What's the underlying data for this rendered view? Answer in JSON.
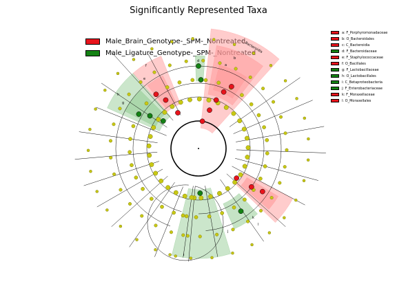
{
  "title": "Significantly Represented Taxa",
  "class_legend": [
    {
      "label": "Male_Brain_Genotype-_SPM-_Nontreated",
      "color": "#e8141c"
    },
    {
      "label": "Male_Ligature_Genotype-_SPM-_Nontreated",
      "color": "#148214"
    }
  ],
  "taxa_legend": [
    {
      "label": "a: F_Porphyromonadaceae",
      "color": "#e8141c"
    },
    {
      "label": "b: O_Bacteroidales",
      "color": "#e8141c"
    },
    {
      "label": "c: C_Bacteroidia",
      "color": "#e8141c"
    },
    {
      "label": "d: F_Bacteroidaceae",
      "color": "#148214"
    },
    {
      "label": "e: F_Staphylococcaceae",
      "color": "#e8141c"
    },
    {
      "label": "f: O_Bacillales",
      "color": "#e8141c"
    },
    {
      "label": "g: F_Lactobacillaceae",
      "color": "#148214"
    },
    {
      "label": "h: O_Lactobacillales",
      "color": "#148214"
    },
    {
      "label": "i: C_Betaproteobacteria",
      "color": "#148214"
    },
    {
      "label": "j: F_Enterobacteriaceae",
      "color": "#148214"
    },
    {
      "label": "k: F_Moraxellaceae",
      "color": "#e8141c"
    },
    {
      "label": "l: O_Moraxellales",
      "color": "#e8141c"
    }
  ],
  "sector_labels": {
    "c": "c",
    "b": "b",
    "a": "a",
    "d": "d",
    "f": "f",
    "e": "e",
    "h": "h",
    "g": "g",
    "i": "i",
    "j": "j",
    "l": "l",
    "k": "k",
    "c_long": "C_Bacteroidia"
  },
  "colors": {
    "enriched_red": "#e8141c",
    "enriched_green": "#148214",
    "neutral_node": "#c8c814",
    "red_shade": "#ff9a9a",
    "green_shade": "#8cc88c"
  }
}
